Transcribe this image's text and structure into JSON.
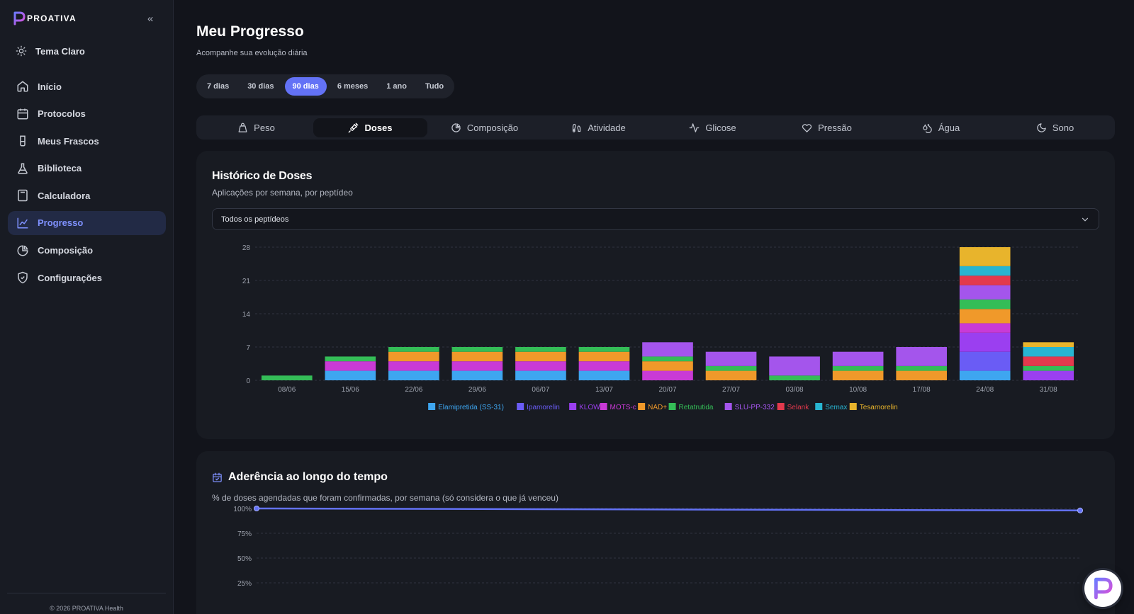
{
  "brand": {
    "logo_text": "PROATIVA"
  },
  "sidebar": {
    "theme_toggle": "Tema Claro",
    "items": [
      {
        "label": "Início",
        "icon": "home-icon"
      },
      {
        "label": "Protocolos",
        "icon": "calendar-icon"
      },
      {
        "label": "Meus Frascos",
        "icon": "vial-icon"
      },
      {
        "label": "Biblioteca",
        "icon": "flask-icon"
      },
      {
        "label": "Calculadora",
        "icon": "calculator-icon"
      },
      {
        "label": "Progresso",
        "icon": "trend-icon",
        "active": true
      },
      {
        "label": "Composição",
        "icon": "pie-icon"
      },
      {
        "label": "Configurações",
        "icon": "shield-icon"
      }
    ],
    "footer": "© 2026 PROATIVA Health"
  },
  "page": {
    "title": "Meu Progresso",
    "subtitle": "Acompanhe sua evolução diária"
  },
  "ranges": [
    "7 dias",
    "30 dias",
    "90 dias",
    "6 meses",
    "1 ano",
    "Tudo"
  ],
  "active_range": "90 dias",
  "tabs": [
    {
      "label": "Peso",
      "icon": "scale-icon"
    },
    {
      "label": "Doses",
      "icon": "syringe-icon",
      "active": true
    },
    {
      "label": "Composição",
      "icon": "pie-icon"
    },
    {
      "label": "Atividade",
      "icon": "footprints-icon"
    },
    {
      "label": "Glicose",
      "icon": "activity-icon"
    },
    {
      "label": "Pressão",
      "icon": "heart-icon"
    },
    {
      "label": "Água",
      "icon": "droplets-icon"
    },
    {
      "label": "Sono",
      "icon": "moon-icon"
    }
  ],
  "doses_card": {
    "title": "Histórico de Doses",
    "subtitle": "Aplicações por semana, por peptídeo",
    "select_value": "Todos os peptídeos"
  },
  "adherence_card": {
    "title": "Aderência ao longo do tempo",
    "subtitle": "% de doses agendadas que foram confirmadas, por semana (só considera o que já venceu)"
  },
  "colors": {
    "accent": "#6372f6",
    "Elamipretida (SS-31)": "#3ea6f0",
    "Ipamorelin": "#6a5cf5",
    "KLOW": "#9b3ff0",
    "MOTS-c": "#c93ad6",
    "NAD+": "#f0992a",
    "Retatrutida": "#34bd57",
    "SLU-PP-332": "#a455ec",
    "Selank": "#e3394d",
    "Semax": "#28b5d1",
    "Tesamorelin": "#e8b42c"
  },
  "chart_data": [
    {
      "type": "bar",
      "stacked": true,
      "categories": [
        "08/06",
        "15/06",
        "22/06",
        "29/06",
        "06/07",
        "13/07",
        "20/07",
        "27/07",
        "03/08",
        "10/08",
        "17/08",
        "24/08",
        "31/08"
      ],
      "series": [
        {
          "name": "Elamipretida (SS-31)",
          "values": [
            0,
            2,
            2,
            2,
            2,
            2,
            0,
            0,
            0,
            0,
            0,
            2,
            0
          ]
        },
        {
          "name": "Ipamorelin",
          "values": [
            0,
            0,
            0,
            0,
            0,
            0,
            0,
            0,
            0,
            0,
            0,
            4,
            0
          ]
        },
        {
          "name": "KLOW",
          "values": [
            0,
            0,
            0,
            0,
            0,
            0,
            0,
            0,
            0,
            0,
            0,
            4,
            2
          ]
        },
        {
          "name": "MOTS-c",
          "values": [
            0,
            2,
            2,
            2,
            2,
            2,
            2,
            0,
            0,
            0,
            0,
            2,
            0
          ]
        },
        {
          "name": "NAD+",
          "values": [
            0,
            0,
            2,
            2,
            2,
            2,
            2,
            2,
            0,
            2,
            2,
            3,
            0
          ]
        },
        {
          "name": "Retatrutida",
          "values": [
            1,
            1,
            1,
            1,
            1,
            1,
            1,
            1,
            1,
            1,
            1,
            2,
            1
          ]
        },
        {
          "name": "SLU-PP-332",
          "values": [
            0,
            0,
            0,
            0,
            0,
            0,
            3,
            3,
            4,
            3,
            4,
            3,
            0
          ]
        },
        {
          "name": "Selank",
          "values": [
            0,
            0,
            0,
            0,
            0,
            0,
            0,
            0,
            0,
            0,
            0,
            2,
            2
          ]
        },
        {
          "name": "Semax",
          "values": [
            0,
            0,
            0,
            0,
            0,
            0,
            0,
            0,
            0,
            0,
            0,
            2,
            2
          ]
        },
        {
          "name": "Tesamorelin",
          "values": [
            0,
            0,
            0,
            0,
            0,
            0,
            0,
            0,
            0,
            0,
            0,
            4,
            1
          ]
        }
      ],
      "yticks": [
        0,
        7,
        14,
        21,
        28
      ],
      "ylim": [
        0,
        28
      ],
      "grid": true,
      "legend": "bottom"
    },
    {
      "type": "line",
      "x": [
        0,
        1
      ],
      "values": [
        100,
        98
      ],
      "yticks": [
        "100%",
        "75%",
        "50%",
        "25%"
      ],
      "ylim": [
        0,
        100
      ],
      "grid": true
    }
  ]
}
